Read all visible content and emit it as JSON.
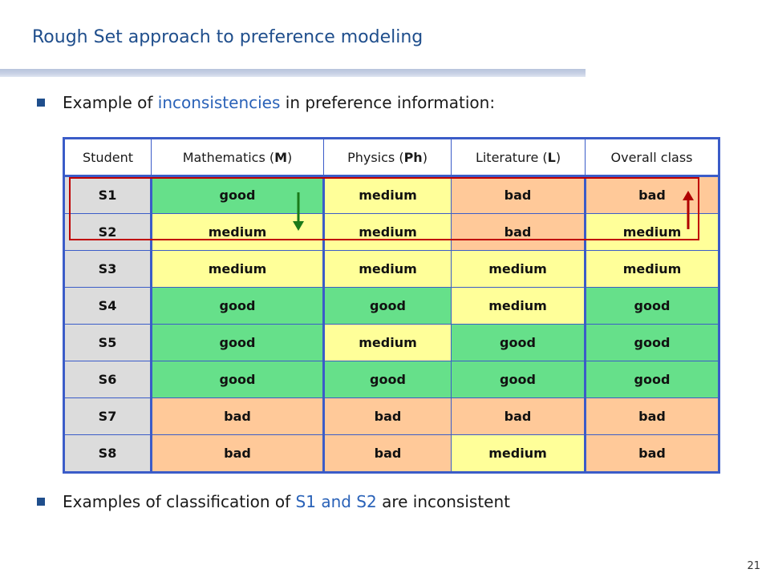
{
  "slide": {
    "title": "Rough Set approach to preference modeling",
    "bullet1": {
      "prefix": "Example of ",
      "highlight": "inconsistencies",
      "suffix": " in preference information:"
    },
    "bullet2": {
      "prefix": "Examples of classification of ",
      "highlight": "S1 and S2",
      "suffix": " are inconsistent"
    },
    "page_number": "21"
  },
  "table": {
    "headers": [
      {
        "pre": "Student",
        "bold": "",
        "post": ""
      },
      {
        "pre": "Mathematics (",
        "bold": "M",
        "post": ")"
      },
      {
        "pre": "Physics (",
        "bold": "Ph",
        "post": ")"
      },
      {
        "pre": "Literature (",
        "bold": "L",
        "post": ")"
      },
      {
        "pre": "Overall class",
        "bold": "",
        "post": ""
      }
    ],
    "rows": [
      {
        "id": "S1",
        "cells": [
          "good",
          "medium",
          "bad",
          "bad"
        ]
      },
      {
        "id": "S2",
        "cells": [
          "medium",
          "medium",
          "bad",
          "medium"
        ]
      },
      {
        "id": "S3",
        "cells": [
          "medium",
          "medium",
          "medium",
          "medium"
        ]
      },
      {
        "id": "S4",
        "cells": [
          "good",
          "good",
          "medium",
          "good"
        ]
      },
      {
        "id": "S5",
        "cells": [
          "good",
          "medium",
          "good",
          "good"
        ]
      },
      {
        "id": "S6",
        "cells": [
          "good",
          "good",
          "good",
          "good"
        ]
      },
      {
        "id": "S7",
        "cells": [
          "bad",
          "bad",
          "bad",
          "bad"
        ]
      },
      {
        "id": "S8",
        "cells": [
          "bad",
          "bad",
          "medium",
          "bad"
        ]
      }
    ]
  },
  "colors": {
    "good": "#66e08a",
    "medium": "#ffff99",
    "bad": "#ffc999",
    "student_cell": "#dcdcdc",
    "title": "#1f4e8c",
    "highlight": "#2a62b8",
    "table_border": "#3b5cc8",
    "inconsistency_box": "#c00000",
    "arrow_down": "#1a7a1a",
    "arrow_up": "#b00000"
  },
  "annotations": {
    "down_arrow_icon": "arrow-down-icon",
    "up_arrow_icon": "arrow-up-icon"
  }
}
